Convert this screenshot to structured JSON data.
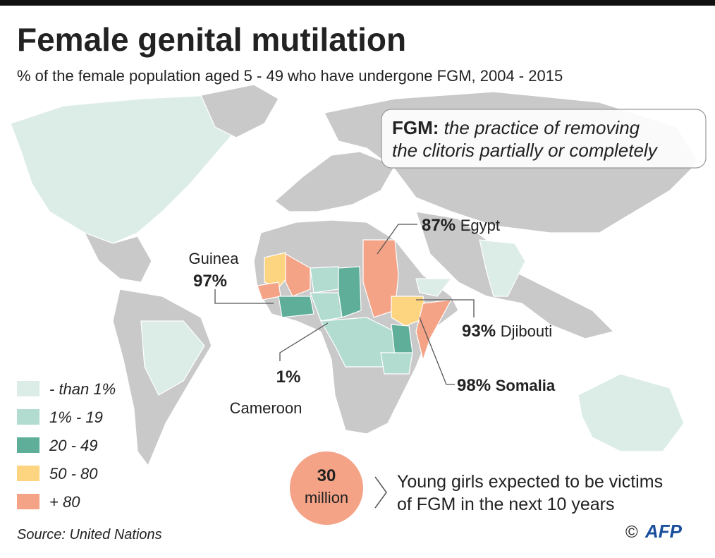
{
  "header": {
    "title": "Female genital mutilation",
    "subtitle": "% of the female population aged 5 - 49 who have undergone FGM, 2004 - 2015"
  },
  "definition": {
    "term": "FGM:",
    "text_line1": "the practice of removing",
    "text_line2": "the clitoris partially or completely"
  },
  "callouts": [
    {
      "value": "97%",
      "country": "Guinea"
    },
    {
      "value": "1%",
      "country": "Cameroon"
    },
    {
      "value": "87%",
      "country": "Egypt"
    },
    {
      "value": "93%",
      "country": "Djibouti"
    },
    {
      "value": "98%",
      "country": "Somalia"
    }
  ],
  "legend": [
    {
      "label": "- than 1%",
      "color": "#dcede8"
    },
    {
      "label": "1% - 19",
      "color": "#b3dcd1"
    },
    {
      "label": "20 - 49",
      "color": "#5fae9a"
    },
    {
      "label": "50 - 80",
      "color": "#fdd47f"
    },
    {
      "label": "+ 80",
      "color": "#f4a387"
    }
  ],
  "stat": {
    "number": "30",
    "unit": "million",
    "text_line1": "Young girls expected to be victims",
    "text_line2": "of FGM in the next 10 years"
  },
  "source": "Source: United Nations",
  "credit": {
    "symbol": "©",
    "logo": "AFP"
  }
}
